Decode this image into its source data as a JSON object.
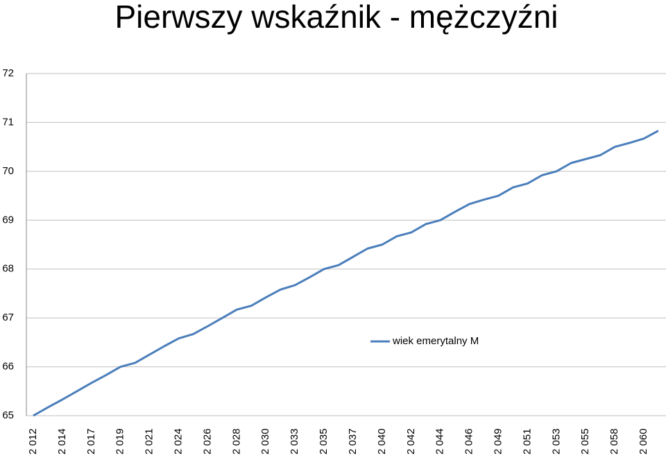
{
  "chart_data": {
    "type": "line",
    "title": "Pierwszy wskaźnik - mężczyźni",
    "categories": [
      "2 012",
      null,
      "2 014",
      null,
      "2 017",
      null,
      "2 019",
      null,
      "2 021",
      null,
      "2 024",
      null,
      "2 026",
      null,
      "2 028",
      null,
      "2 030",
      null,
      "2 033",
      null,
      "2 035",
      null,
      "2 037",
      null,
      "2 040",
      null,
      "2 042",
      null,
      "2 044",
      null,
      "2 046",
      null,
      "2 049",
      null,
      "2 051",
      null,
      "2 053",
      null,
      "2 055",
      null,
      "2 058",
      null,
      "2 060",
      null
    ],
    "series": [
      {
        "name": "wiek emerytalny M",
        "color": "#4a7ebb",
        "values": [
          65,
          65.17,
          65.33,
          65.5,
          65.67,
          65.83,
          66.0,
          66.08,
          66.25,
          66.42,
          66.58,
          66.67,
          66.83,
          67.0,
          67.17,
          67.25,
          67.42,
          67.58,
          67.67,
          67.83,
          68.0,
          68.08,
          68.25,
          68.42,
          68.5,
          68.67,
          68.75,
          68.92,
          69.0,
          69.17,
          69.33,
          69.42,
          69.5,
          69.67,
          69.75,
          69.92,
          70.0,
          70.17,
          70.25,
          70.33,
          70.5,
          70.58,
          70.67,
          70.83
        ]
      }
    ],
    "ylim": [
      65,
      72
    ],
    "yticks": [
      65,
      66,
      67,
      68,
      69,
      70,
      71,
      72
    ],
    "grid": true,
    "legend": "right"
  }
}
